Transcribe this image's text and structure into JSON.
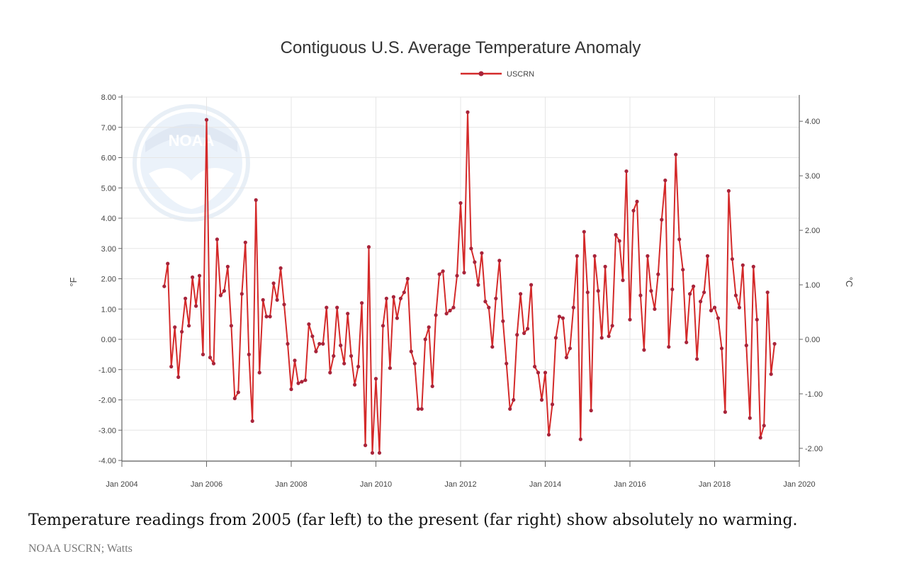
{
  "caption": "Temperature readings from 2005 (far left) to the present (far right) show absolutely no warming.",
  "credit": "NOAA USCRN; Watts",
  "colors": {
    "series": "#d42a2a",
    "marker": "#a8243a",
    "axis": "#666666",
    "grid": "#e6e6e6",
    "logo": "#dfe9f5"
  },
  "logo_icon": "noaa-logo",
  "chart_data": {
    "type": "line",
    "title": "Contiguous U.S. Average Temperature Anomaly",
    "ylabel": "°F",
    "y2label": "°C",
    "legend_position": "top-center",
    "grid": true,
    "xlim": [
      "2004-01",
      "2020-01"
    ],
    "ylim": [
      -4,
      8
    ],
    "y2lim": [
      -2.2222,
      4.4444
    ],
    "x_tick_labels": [
      "Jan 2004",
      "Jan 2006",
      "Jan 2008",
      "Jan 2010",
      "Jan 2012",
      "Jan 2014",
      "Jan 2016",
      "Jan 2018",
      "Jan 2020"
    ],
    "y_tick_labels": [
      "8.00",
      "7.00",
      "6.00",
      "5.00",
      "4.00",
      "3.00",
      "2.00",
      "1.00",
      "0.00",
      "-1.00",
      "-2.00",
      "-3.00",
      "-4.00"
    ],
    "y2_tick_labels": [
      "4.00",
      "3.00",
      "2.00",
      "1.00",
      "0.00",
      "-1.00",
      "-2.00"
    ],
    "start_month": "2005-01",
    "series": [
      {
        "name": "USCRN",
        "values": [
          1.75,
          2.5,
          -0.9,
          0.4,
          -1.25,
          0.25,
          1.35,
          0.45,
          2.05,
          1.1,
          2.1,
          -0.5,
          7.25,
          -0.6,
          -0.8,
          3.3,
          1.45,
          1.6,
          2.4,
          0.45,
          -1.95,
          -1.75,
          1.5,
          3.2,
          -0.5,
          -2.7,
          4.6,
          -1.1,
          1.3,
          0.75,
          0.75,
          1.85,
          1.3,
          2.35,
          1.15,
          -0.15,
          -1.65,
          -0.7,
          -1.45,
          -1.4,
          -1.35,
          0.5,
          0.1,
          -0.4,
          -0.15,
          -0.15,
          1.05,
          -1.1,
          -0.55,
          1.05,
          -0.2,
          -0.8,
          0.85,
          -0.55,
          -1.5,
          -0.9,
          1.2,
          -3.5,
          3.05,
          -3.75,
          -1.3,
          -3.75,
          0.45,
          1.35,
          -0.95,
          1.4,
          0.7,
          1.35,
          1.55,
          2.0,
          -0.4,
          -0.8,
          -2.3,
          -2.3,
          0.0,
          0.4,
          -1.55,
          0.8,
          2.15,
          2.25,
          0.85,
          0.95,
          1.05,
          2.1,
          4.5,
          2.2,
          7.5,
          3.0,
          2.55,
          1.8,
          2.85,
          1.25,
          1.05,
          -0.25,
          1.35,
          2.6,
          0.6,
          -0.8,
          -2.3,
          -2.0,
          0.15,
          1.5,
          0.2,
          0.35,
          1.8,
          -0.9,
          -1.1,
          -2.0,
          -1.1,
          -3.15,
          -2.15,
          0.05,
          0.75,
          0.7,
          -0.6,
          -0.3,
          1.05,
          2.75,
          -3.3,
          3.55,
          1.55,
          -2.35,
          2.75,
          1.6,
          0.05,
          2.4,
          0.1,
          0.45,
          3.45,
          3.25,
          1.95,
          5.55,
          0.65,
          4.25,
          4.55,
          1.45,
          -0.35,
          2.75,
          1.6,
          1.0,
          2.15,
          3.95,
          5.25,
          -0.25,
          1.65,
          6.1,
          3.3,
          2.3,
          -0.1,
          1.5,
          1.75,
          -0.65,
          1.25,
          1.55,
          2.75,
          0.95,
          1.05,
          0.7,
          -0.3,
          -2.4,
          4.9,
          2.65,
          1.45,
          1.05,
          2.45,
          -0.2,
          -2.6,
          2.4,
          0.65,
          -3.25,
          -2.85,
          1.55,
          -1.15,
          -0.15
        ]
      }
    ]
  }
}
